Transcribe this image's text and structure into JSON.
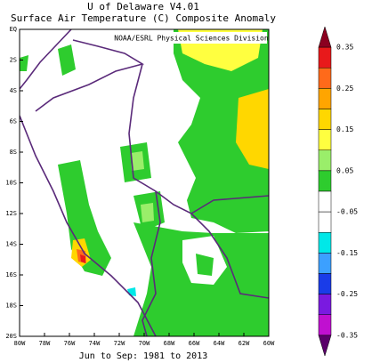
{
  "header": {
    "title": "U of Delaware V4.01",
    "subtitle": "Surface Air Temperature (C) Composite Anomaly"
  },
  "map": {
    "attribution": "NOAA/ESRL Physical Sciences Division",
    "lon_ticks": [
      "80W",
      "78W",
      "76W",
      "74W",
      "72W",
      "70W",
      "68W",
      "66W",
      "64W",
      "62W",
      "60W"
    ],
    "lat_ticks": [
      "EQ",
      "2S",
      "4S",
      "6S",
      "8S",
      "10S",
      "12S",
      "14S",
      "16S",
      "18S",
      "20S"
    ],
    "footer": "Jun to Sep: 1981 to 2013"
  },
  "colorbar": {
    "ticks": [
      0.35,
      0.25,
      0.15,
      0.05,
      -0.05,
      -0.15,
      -0.25,
      -0.35
    ],
    "colors": [
      "#8b0020",
      "#e8191b",
      "#ff6a1a",
      "#ffa500",
      "#ffd700",
      "#ffff40",
      "#9aee6a",
      "#2ecc2e",
      "#ffffff",
      "#ffffff",
      "#00e8e8",
      "#3ca0ff",
      "#1a3ce8",
      "#7a1ae0",
      "#c010d0",
      "#5a006a"
    ]
  }
}
